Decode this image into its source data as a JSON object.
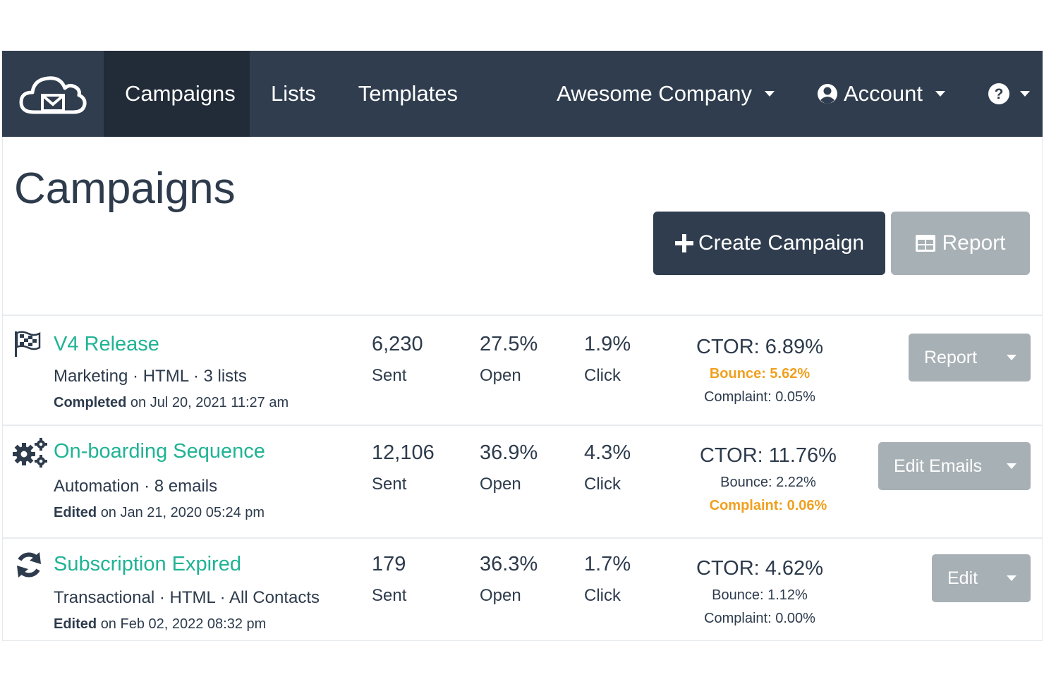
{
  "navbar": {
    "logo_icon": "cloud-mail-icon",
    "items": [
      {
        "label": "Campaigns",
        "active": true
      },
      {
        "label": "Lists"
      },
      {
        "label": "Templates"
      }
    ],
    "company": "Awesome Company",
    "account": "Account",
    "help_icon": "question-circle-icon"
  },
  "header": {
    "title": "Campaigns",
    "create_label": "Create Campaign",
    "report_label": "Report"
  },
  "campaigns": [
    {
      "icon": "checkered-flag-icon",
      "name": "V4 Release",
      "meta": "Marketing · HTML · 3 lists",
      "status": "Completed",
      "date": "on Jul 20, 2021 11:27 am",
      "sent": "6,230",
      "sent_label": "Sent",
      "open": "27.5%",
      "open_label": "Open",
      "click": "1.9%",
      "click_label": "Click",
      "ctor": "CTOR: 6.89%",
      "bounce": "Bounce: 5.62%",
      "complaint": "Complaint: 0.05%",
      "action": "Report"
    },
    {
      "icon": "gears-icon",
      "name": "On-boarding Sequence",
      "meta": "Automation · 8 emails",
      "status": "Edited",
      "date": "on Jan 21, 2020 05:24 pm",
      "sent": "12,106",
      "sent_label": "Sent",
      "open": "36.9%",
      "open_label": "Open",
      "click": "4.3%",
      "click_label": "Click",
      "ctor": "CTOR: 11.76%",
      "bounce": "Bounce: 2.22%",
      "complaint": "Complaint: 0.06%",
      "action": "Edit Emails"
    },
    {
      "icon": "sync-icon",
      "name": "Subscription Expired",
      "meta": "Transactional · HTML · All Contacts",
      "status": "Edited",
      "date": "on Feb 02, 2022 08:32 pm",
      "sent": "179",
      "sent_label": "Sent",
      "open": "36.3%",
      "open_label": "Open",
      "click": "1.7%",
      "click_label": "Click",
      "ctor": "CTOR: 4.62%",
      "bounce": "Bounce: 1.12%",
      "complaint": "Complaint: 0.00%",
      "action": "Edit"
    }
  ],
  "colors": {
    "navbar": "#2f3d4e",
    "navbar_active": "#222c38",
    "link": "#1fb394",
    "warning": "#f0a020",
    "secondary_button": "#a7b0b4"
  }
}
